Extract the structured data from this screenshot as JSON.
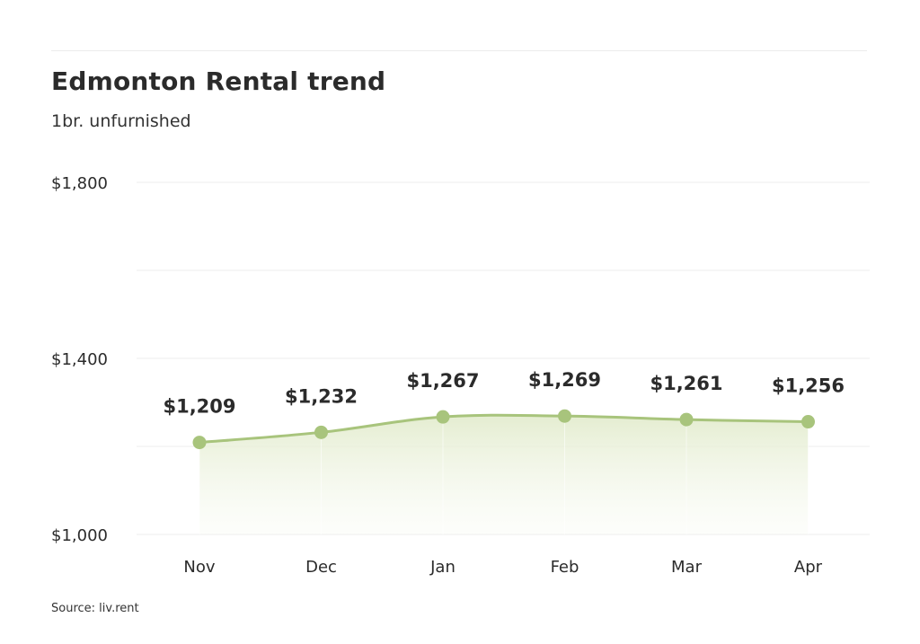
{
  "chart_data": {
    "type": "area",
    "title": "Edmonton Rental trend",
    "subtitle": "1br. unfurnished",
    "categories": [
      "Nov",
      "Dec",
      "Jan",
      "Feb",
      "Mar",
      "Apr"
    ],
    "series": [
      {
        "values": [
          1209,
          1232,
          1267,
          1269,
          1261,
          1256
        ],
        "data_labels": [
          "$1,209",
          "$1,232",
          "$1,267",
          "$1,269",
          "$1,261",
          "$1,256"
        ]
      }
    ],
    "ylim": [
      1000,
      1800
    ],
    "yticks": [
      1000,
      1400,
      1800
    ],
    "ytick_labels": [
      "$1,000",
      "$1,400",
      "$1,800"
    ],
    "grid": true,
    "legend": "none",
    "xlabel": "",
    "ylabel": "",
    "source": "Source: liv.rent",
    "colors": {
      "line": "#a8c47c",
      "marker": "#a8c47c",
      "fill": "#eef4df",
      "grid": "#eeeeee"
    }
  }
}
